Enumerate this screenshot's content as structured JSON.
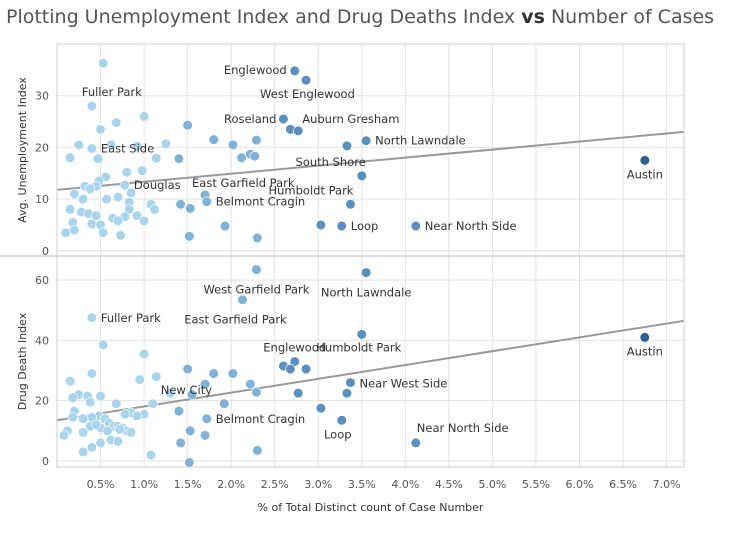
{
  "title": {
    "part1": "Plotting Unemployment  Index and Drug Deaths Index ",
    "vs": "vs",
    "part2": " Number of Cases"
  },
  "chart_data": [
    {
      "type": "scatter",
      "panel": "top",
      "ylabel": "Avg. Unemployment Index",
      "xlabel": "% of Total Distinct count of Case Number",
      "xlim": [
        0,
        7.2
      ],
      "ylim": [
        -1,
        40
      ],
      "yticks": [
        0,
        10,
        20,
        30
      ],
      "xticks": [
        0.5,
        1.0,
        1.5,
        2.0,
        2.5,
        3.0,
        3.5,
        4.0,
        4.5,
        5.0,
        5.5,
        6.0,
        6.5,
        7.0
      ],
      "xtick_labels": [
        "0.5%",
        "1.0%",
        "1.5%",
        "2.0%",
        "2.5%",
        "3.0%",
        "3.5%",
        "4.0%",
        "4.5%",
        "5.0%",
        "5.5%",
        "6.0%",
        "6.5%",
        "7.0%"
      ],
      "trend": [
        [
          0,
          11.8
        ],
        [
          7.2,
          23.0
        ]
      ],
      "points": [
        {
          "x": 0.53,
          "y": 36.3,
          "label": ""
        },
        {
          "x": 0.4,
          "y": 28.0,
          "label": "Fuller Park"
        },
        {
          "x": 0.68,
          "y": 24.8,
          "label": ""
        },
        {
          "x": 1.0,
          "y": 26.0,
          "label": ""
        },
        {
          "x": 0.5,
          "y": 23.5,
          "label": ""
        },
        {
          "x": 0.25,
          "y": 20.5,
          "label": ""
        },
        {
          "x": 0.4,
          "y": 19.8,
          "label": "East Side"
        },
        {
          "x": 0.15,
          "y": 18.0,
          "label": ""
        },
        {
          "x": 0.47,
          "y": 17.8,
          "label": ""
        },
        {
          "x": 0.62,
          "y": 20.5,
          "label": ""
        },
        {
          "x": 0.92,
          "y": 20.2,
          "label": ""
        },
        {
          "x": 0.8,
          "y": 15.2,
          "label": ""
        },
        {
          "x": 0.98,
          "y": 15.5,
          "label": ""
        },
        {
          "x": 1.25,
          "y": 20.7,
          "label": ""
        },
        {
          "x": 1.14,
          "y": 17.9,
          "label": ""
        },
        {
          "x": 1.4,
          "y": 17.8,
          "label": ""
        },
        {
          "x": 1.5,
          "y": 24.3,
          "label": ""
        },
        {
          "x": 1.8,
          "y": 21.5,
          "label": ""
        },
        {
          "x": 2.02,
          "y": 20.5,
          "label": ""
        },
        {
          "x": 2.29,
          "y": 21.4,
          "label": ""
        },
        {
          "x": 2.12,
          "y": 18.0,
          "label": ""
        },
        {
          "x": 2.22,
          "y": 18.7,
          "label": ""
        },
        {
          "x": 2.27,
          "y": 18.3,
          "label": ""
        },
        {
          "x": 2.73,
          "y": 34.8,
          "label": "Englewood"
        },
        {
          "x": 2.86,
          "y": 33.0,
          "label": "West Englewood"
        },
        {
          "x": 2.6,
          "y": 25.5,
          "label": "Roseland"
        },
        {
          "x": 2.68,
          "y": 23.5,
          "label": ""
        },
        {
          "x": 2.77,
          "y": 23.2,
          "label": "Auburn Gresham"
        },
        {
          "x": 3.33,
          "y": 20.3,
          "label": ""
        },
        {
          "x": 3.55,
          "y": 21.3,
          "label": "North Lawndale"
        },
        {
          "x": 3.5,
          "y": 14.5,
          "label": "South Shore"
        },
        {
          "x": 1.7,
          "y": 10.8,
          "label": "East Garfield Park"
        },
        {
          "x": 1.72,
          "y": 9.5,
          "label": "Belmont Cragin"
        },
        {
          "x": 0.78,
          "y": 12.7,
          "label": "Douglas"
        },
        {
          "x": 0.56,
          "y": 14.3,
          "label": ""
        },
        {
          "x": 0.48,
          "y": 13.5,
          "label": ""
        },
        {
          "x": 0.45,
          "y": 12.5,
          "label": ""
        },
        {
          "x": 0.32,
          "y": 12.5,
          "label": ""
        },
        {
          "x": 0.38,
          "y": 12.0,
          "label": ""
        },
        {
          "x": 0.2,
          "y": 11.0,
          "label": ""
        },
        {
          "x": 0.3,
          "y": 10.0,
          "label": ""
        },
        {
          "x": 0.57,
          "y": 10.0,
          "label": ""
        },
        {
          "x": 0.7,
          "y": 10.4,
          "label": ""
        },
        {
          "x": 0.85,
          "y": 11.2,
          "label": ""
        },
        {
          "x": 0.83,
          "y": 9.4,
          "label": ""
        },
        {
          "x": 1.08,
          "y": 9.0,
          "label": ""
        },
        {
          "x": 1.12,
          "y": 8.0,
          "label": ""
        },
        {
          "x": 0.83,
          "y": 8.0,
          "label": ""
        },
        {
          "x": 0.15,
          "y": 8.0,
          "label": ""
        },
        {
          "x": 0.28,
          "y": 7.5,
          "label": ""
        },
        {
          "x": 0.36,
          "y": 7.2,
          "label": ""
        },
        {
          "x": 0.45,
          "y": 6.8,
          "label": ""
        },
        {
          "x": 0.64,
          "y": 6.3,
          "label": ""
        },
        {
          "x": 0.78,
          "y": 6.6,
          "label": ""
        },
        {
          "x": 0.92,
          "y": 6.8,
          "label": ""
        },
        {
          "x": 1.0,
          "y": 5.8,
          "label": ""
        },
        {
          "x": 0.18,
          "y": 5.5,
          "label": ""
        },
        {
          "x": 0.4,
          "y": 5.2,
          "label": ""
        },
        {
          "x": 0.5,
          "y": 5.0,
          "label": ""
        },
        {
          "x": 0.7,
          "y": 5.8,
          "label": ""
        },
        {
          "x": 0.1,
          "y": 3.5,
          "label": ""
        },
        {
          "x": 0.2,
          "y": 4.0,
          "label": ""
        },
        {
          "x": 0.53,
          "y": 3.5,
          "label": ""
        },
        {
          "x": 0.73,
          "y": 3.0,
          "label": ""
        },
        {
          "x": 1.42,
          "y": 9.0,
          "label": ""
        },
        {
          "x": 1.53,
          "y": 8.2,
          "label": ""
        },
        {
          "x": 1.52,
          "y": 2.8,
          "label": ""
        },
        {
          "x": 1.93,
          "y": 4.8,
          "label": ""
        },
        {
          "x": 2.3,
          "y": 2.5,
          "label": ""
        },
        {
          "x": 3.37,
          "y": 9.0,
          "label": "Humboldt Park"
        },
        {
          "x": 3.03,
          "y": 5.0,
          "label": ""
        },
        {
          "x": 3.27,
          "y": 4.8,
          "label": "Loop"
        },
        {
          "x": 4.12,
          "y": 4.8,
          "label": "Near North Side"
        },
        {
          "x": 6.75,
          "y": 17.5,
          "label": "Austin"
        }
      ]
    },
    {
      "type": "scatter",
      "panel": "bottom",
      "ylabel": "Drug Death Index",
      "xlabel": "% of Total Distinct count of Case Number",
      "xlim": [
        0,
        7.2
      ],
      "ylim": [
        -2,
        68
      ],
      "yticks": [
        0,
        20,
        40,
        60
      ],
      "trend": [
        [
          0,
          13.5
        ],
        [
          7.2,
          46.5
        ]
      ],
      "points": [
        {
          "x": 2.29,
          "y": 63.5,
          "label": "West Garfield Park"
        },
        {
          "x": 3.55,
          "y": 62.5,
          "label": "North Lawndale"
        },
        {
          "x": 2.13,
          "y": 53.5,
          "label": "East Garfield Park"
        },
        {
          "x": 0.4,
          "y": 47.5,
          "label": "Fuller Park"
        },
        {
          "x": 3.5,
          "y": 42.0,
          "label": "Humboldt Park"
        },
        {
          "x": 6.75,
          "y": 41.0,
          "label": "Austin"
        },
        {
          "x": 0.53,
          "y": 38.5,
          "label": ""
        },
        {
          "x": 1.0,
          "y": 35.5,
          "label": ""
        },
        {
          "x": 2.73,
          "y": 33.0,
          "label": "Englewood"
        },
        {
          "x": 2.6,
          "y": 31.5,
          "label": ""
        },
        {
          "x": 2.68,
          "y": 30.5,
          "label": ""
        },
        {
          "x": 2.86,
          "y": 30.5,
          "label": ""
        },
        {
          "x": 0.4,
          "y": 29.0,
          "label": ""
        },
        {
          "x": 1.5,
          "y": 30.5,
          "label": ""
        },
        {
          "x": 1.8,
          "y": 29.0,
          "label": ""
        },
        {
          "x": 2.02,
          "y": 29.0,
          "label": ""
        },
        {
          "x": 0.95,
          "y": 27.0,
          "label": ""
        },
        {
          "x": 1.14,
          "y": 28.0,
          "label": ""
        },
        {
          "x": 0.15,
          "y": 26.5,
          "label": ""
        },
        {
          "x": 2.22,
          "y": 25.5,
          "label": ""
        },
        {
          "x": 1.7,
          "y": 25.5,
          "label": "New City"
        },
        {
          "x": 2.29,
          "y": 22.8,
          "label": ""
        },
        {
          "x": 3.37,
          "y": 26.0,
          "label": "Near West Side"
        },
        {
          "x": 3.33,
          "y": 22.5,
          "label": ""
        },
        {
          "x": 2.77,
          "y": 22.5,
          "label": ""
        },
        {
          "x": 1.3,
          "y": 22.5,
          "label": ""
        },
        {
          "x": 1.55,
          "y": 22.0,
          "label": ""
        },
        {
          "x": 0.25,
          "y": 22.0,
          "label": ""
        },
        {
          "x": 0.35,
          "y": 21.5,
          "label": ""
        },
        {
          "x": 0.5,
          "y": 21.5,
          "label": ""
        },
        {
          "x": 0.18,
          "y": 21.0,
          "label": ""
        },
        {
          "x": 1.92,
          "y": 19.0,
          "label": ""
        },
        {
          "x": 1.1,
          "y": 19.0,
          "label": ""
        },
        {
          "x": 0.38,
          "y": 19.5,
          "label": ""
        },
        {
          "x": 0.68,
          "y": 19.0,
          "label": ""
        },
        {
          "x": 3.03,
          "y": 17.5,
          "label": ""
        },
        {
          "x": 1.4,
          "y": 16.5,
          "label": ""
        },
        {
          "x": 0.2,
          "y": 16.5,
          "label": ""
        },
        {
          "x": 0.85,
          "y": 16.0,
          "label": ""
        },
        {
          "x": 1.0,
          "y": 15.5,
          "label": ""
        },
        {
          "x": 0.78,
          "y": 15.5,
          "label": ""
        },
        {
          "x": 0.92,
          "y": 15.0,
          "label": ""
        },
        {
          "x": 0.48,
          "y": 15.0,
          "label": ""
        },
        {
          "x": 0.4,
          "y": 14.5,
          "label": ""
        },
        {
          "x": 0.55,
          "y": 14.0,
          "label": ""
        },
        {
          "x": 0.3,
          "y": 14.0,
          "label": ""
        },
        {
          "x": 0.18,
          "y": 14.5,
          "label": ""
        },
        {
          "x": 1.72,
          "y": 14.0,
          "label": "Belmont Cragin"
        },
        {
          "x": 3.27,
          "y": 13.5,
          "label": "Loop"
        },
        {
          "x": 0.6,
          "y": 12.5,
          "label": ""
        },
        {
          "x": 0.65,
          "y": 11.5,
          "label": ""
        },
        {
          "x": 0.7,
          "y": 11.5,
          "label": ""
        },
        {
          "x": 0.75,
          "y": 11.0,
          "label": ""
        },
        {
          "x": 0.8,
          "y": 10.0,
          "label": ""
        },
        {
          "x": 0.85,
          "y": 9.5,
          "label": ""
        },
        {
          "x": 0.72,
          "y": 10.5,
          "label": ""
        },
        {
          "x": 0.5,
          "y": 11.0,
          "label": ""
        },
        {
          "x": 0.58,
          "y": 10.0,
          "label": ""
        },
        {
          "x": 0.38,
          "y": 11.5,
          "label": ""
        },
        {
          "x": 0.45,
          "y": 12.0,
          "label": ""
        },
        {
          "x": 0.3,
          "y": 9.5,
          "label": ""
        },
        {
          "x": 0.12,
          "y": 10.0,
          "label": ""
        },
        {
          "x": 0.08,
          "y": 8.5,
          "label": ""
        },
        {
          "x": 0.62,
          "y": 7.0,
          "label": ""
        },
        {
          "x": 0.5,
          "y": 6.0,
          "label": ""
        },
        {
          "x": 0.4,
          "y": 4.5,
          "label": ""
        },
        {
          "x": 0.3,
          "y": 3.0,
          "label": ""
        },
        {
          "x": 0.7,
          "y": 6.5,
          "label": ""
        },
        {
          "x": 1.53,
          "y": 10.0,
          "label": ""
        },
        {
          "x": 1.42,
          "y": 6.0,
          "label": ""
        },
        {
          "x": 1.7,
          "y": 8.5,
          "label": ""
        },
        {
          "x": 1.08,
          "y": 2.0,
          "label": ""
        },
        {
          "x": 1.52,
          "y": -0.5,
          "label": ""
        },
        {
          "x": 2.3,
          "y": 3.5,
          "label": ""
        },
        {
          "x": 4.12,
          "y": 6.0,
          "label": "Near North Side"
        }
      ]
    }
  ],
  "colors": {
    "light": "#a9d4ec",
    "mid": "#7fb2d6",
    "dark": "#5b8fbd",
    "darkest": "#2f5f8f",
    "trend": "#999999",
    "grid": "#e3e3e3"
  }
}
